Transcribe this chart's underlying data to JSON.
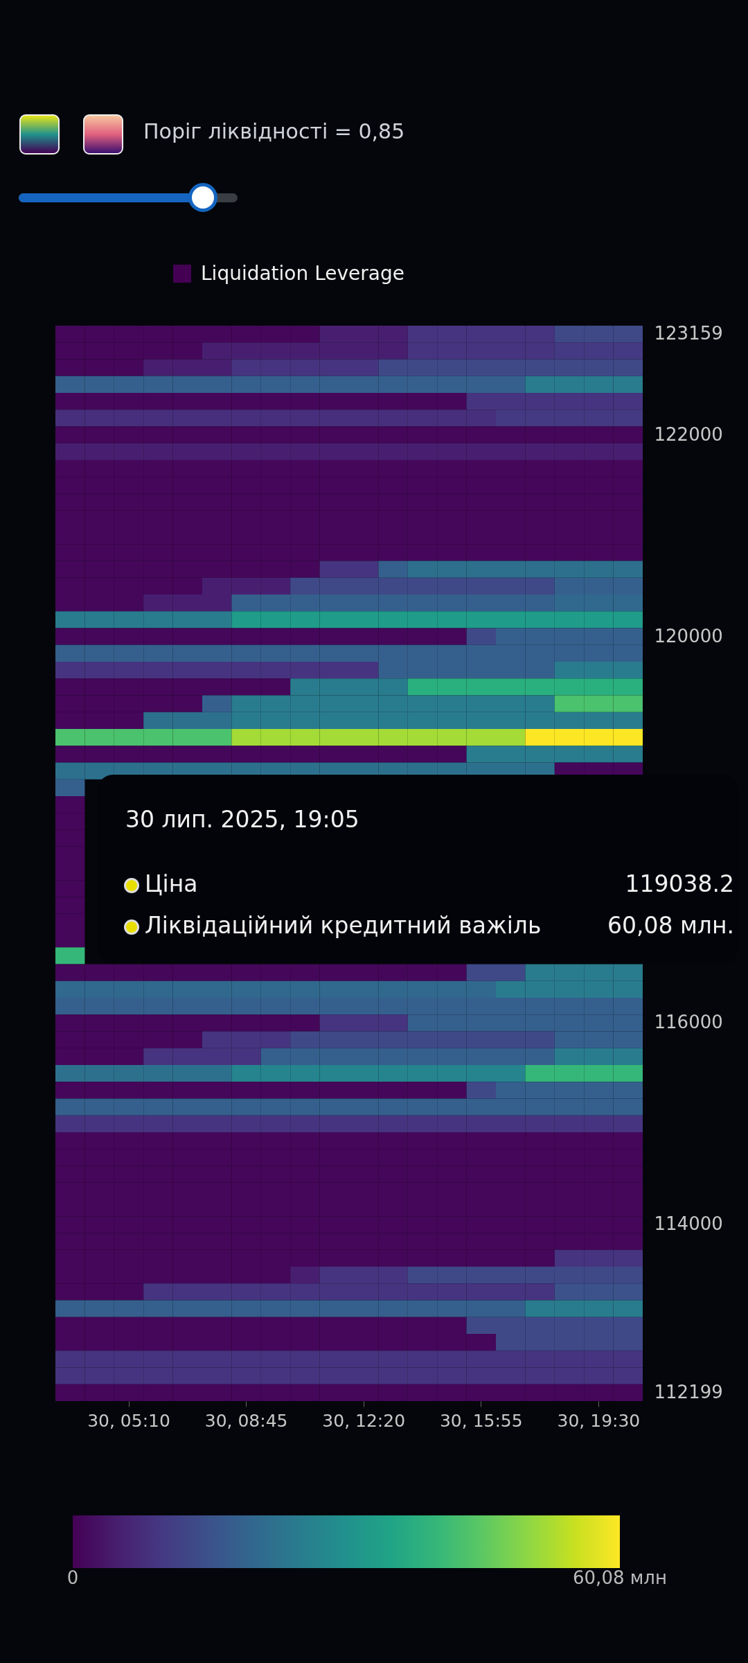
{
  "chart_data": {
    "type": "heatmap",
    "annotations": [
      "Поріг ліквідності = 0,85",
      "30 лип. 2025, 19:05",
      "Ціна",
      "119038.2",
      "Ліквідаційний кредитний важіль",
      "60,08 млн.",
      "Liquidation Leverage"
    ],
    "categories": [
      null,
      null,
      "30, 05:10",
      null,
      null,
      null,
      "30, 08:45",
      null,
      null,
      null,
      "30, 12:20",
      null,
      null,
      null,
      "30, 15:55",
      null,
      null,
      null,
      "30, 19:30",
      null
    ],
    "y_categories": [
      "123159",
      null,
      null,
      null,
      null,
      null,
      "122000",
      null,
      null,
      null,
      null,
      null,
      null,
      null,
      null,
      null,
      null,
      null,
      "120000",
      null,
      null,
      null,
      null,
      null,
      null,
      null,
      null,
      null,
      null,
      null,
      null,
      null,
      null,
      null,
      null,
      null,
      null,
      null,
      null,
      null,
      null,
      "116000",
      null,
      null,
      null,
      null,
      null,
      null,
      null,
      null,
      null,
      null,
      null,
      "114000",
      null,
      null,
      null,
      null,
      null,
      null,
      null,
      null,
      null,
      "112199"
    ],
    "clim": [
      0,
      60.08
    ],
    "cticks": [
      0,
      {
        "value": 60.08,
        "label": "60,08 млн"
      }
    ],
    "cells": [
      [
        1,
        1,
        1,
        1,
        1,
        1,
        1,
        1,
        1,
        5,
        5,
        5,
        9,
        9,
        9,
        9,
        9,
        13,
        13,
        13
      ],
      [
        1,
        1,
        1,
        1,
        1,
        5,
        5,
        5,
        5,
        5,
        5,
        5,
        9,
        9,
        9,
        9,
        9,
        10,
        10,
        10
      ],
      [
        1,
        1,
        1,
        5,
        5,
        5,
        9,
        9,
        9,
        9,
        9,
        13,
        13,
        13,
        13,
        13,
        13,
        13,
        13,
        13
      ],
      [
        18,
        18,
        18,
        18,
        18,
        18,
        18,
        18,
        18,
        18,
        18,
        18,
        18,
        18,
        18,
        18,
        25,
        25,
        25,
        25
      ],
      [
        1,
        1,
        1,
        1,
        1,
        1,
        1,
        1,
        1,
        1,
        1,
        1,
        1,
        1,
        9,
        9,
        9,
        9,
        9,
        9
      ],
      [
        8,
        8,
        8,
        8,
        8,
        8,
        8,
        8,
        8,
        8,
        8,
        8,
        8,
        8,
        8,
        10,
        10,
        10,
        10,
        10
      ],
      [
        1,
        1,
        1,
        1,
        1,
        1,
        1,
        1,
        1,
        1,
        1,
        1,
        1,
        1,
        1,
        1,
        1,
        1,
        1,
        1
      ],
      [
        5,
        5,
        5,
        5,
        5,
        5,
        5,
        5,
        5,
        5,
        5,
        5,
        5,
        5,
        5,
        5,
        5,
        5,
        5,
        5
      ],
      [
        1,
        1,
        1,
        1,
        1,
        1,
        1,
        1,
        1,
        1,
        1,
        1,
        1,
        1,
        1,
        1,
        1,
        1,
        1,
        1
      ],
      [
        1,
        1,
        1,
        1,
        1,
        1,
        1,
        1,
        1,
        1,
        1,
        1,
        1,
        1,
        1,
        1,
        1,
        1,
        1,
        1
      ],
      [
        1,
        1,
        1,
        1,
        1,
        1,
        1,
        1,
        1,
        1,
        1,
        1,
        1,
        1,
        1,
        1,
        1,
        1,
        1,
        1
      ],
      [
        1,
        1,
        1,
        1,
        1,
        1,
        1,
        1,
        1,
        1,
        1,
        1,
        1,
        1,
        1,
        1,
        1,
        1,
        1,
        1
      ],
      [
        1,
        1,
        1,
        1,
        1,
        1,
        1,
        1,
        1,
        1,
        1,
        1,
        1,
        1,
        1,
        1,
        1,
        1,
        1,
        1
      ],
      [
        1,
        1,
        1,
        1,
        1,
        1,
        1,
        1,
        1,
        1,
        1,
        1,
        1,
        1,
        1,
        1,
        1,
        1,
        1,
        1
      ],
      [
        1,
        1,
        1,
        1,
        1,
        1,
        1,
        1,
        1,
        9,
        9,
        18,
        22,
        22,
        22,
        22,
        22,
        22,
        22,
        22
      ],
      [
        1,
        1,
        1,
        1,
        1,
        5,
        5,
        5,
        13,
        13,
        13,
        13,
        13,
        13,
        13,
        13,
        13,
        18,
        18,
        18
      ],
      [
        1,
        1,
        1,
        5,
        5,
        5,
        18,
        18,
        18,
        18,
        18,
        18,
        18,
        18,
        18,
        18,
        18,
        20,
        20,
        20
      ],
      [
        25,
        25,
        25,
        25,
        25,
        25,
        33,
        33,
        33,
        33,
        33,
        33,
        33,
        33,
        33,
        33,
        33,
        33,
        33,
        33
      ],
      [
        1,
        1,
        1,
        1,
        1,
        1,
        1,
        1,
        1,
        1,
        1,
        1,
        1,
        1,
        13,
        18,
        18,
        18,
        18,
        18
      ],
      [
        18,
        18,
        18,
        18,
        18,
        18,
        18,
        18,
        18,
        18,
        18,
        18,
        18,
        18,
        18,
        18,
        18,
        18,
        18,
        18
      ],
      [
        9,
        9,
        9,
        9,
        9,
        9,
        9,
        9,
        9,
        9,
        9,
        18,
        18,
        18,
        18,
        18,
        18,
        25,
        25,
        25
      ],
      [
        1,
        1,
        1,
        1,
        1,
        1,
        1,
        1,
        25,
        25,
        25,
        25,
        38,
        38,
        38,
        38,
        38,
        38,
        38,
        38
      ],
      [
        1,
        1,
        1,
        1,
        1,
        18,
        25,
        25,
        25,
        25,
        25,
        25,
        25,
        25,
        25,
        25,
        25,
        43,
        43,
        43
      ],
      [
        1,
        1,
        1,
        22,
        22,
        22,
        25,
        25,
        25,
        25,
        25,
        25,
        25,
        25,
        25,
        25,
        25,
        25,
        25,
        25
      ],
      [
        43,
        43,
        43,
        43,
        43,
        43,
        52,
        52,
        52,
        52,
        52,
        52,
        52,
        52,
        52,
        52,
        60.08,
        60.08,
        60.08,
        60.08
      ],
      [
        1,
        1,
        1,
        1,
        1,
        1,
        1,
        1,
        1,
        1,
        1,
        1,
        1,
        1,
        25,
        25,
        25,
        25,
        25,
        25
      ],
      [
        22,
        22,
        22,
        22,
        22,
        22,
        22,
        22,
        22,
        22,
        22,
        22,
        22,
        22,
        22,
        22,
        22,
        1,
        1,
        1
      ],
      [
        18,
        null,
        null,
        null,
        null,
        null,
        null,
        null,
        null,
        null,
        null,
        null,
        null,
        null,
        null,
        null,
        null,
        null,
        null,
        null
      ],
      [
        1,
        null,
        null,
        null,
        null,
        null,
        null,
        null,
        null,
        null,
        null,
        null,
        null,
        null,
        null,
        null,
        null,
        null,
        null,
        null
      ],
      [
        1,
        null,
        null,
        null,
        null,
        null,
        null,
        null,
        null,
        null,
        null,
        null,
        null,
        null,
        null,
        null,
        null,
        null,
        null,
        null
      ],
      [
        1,
        null,
        null,
        null,
        null,
        null,
        null,
        null,
        null,
        null,
        null,
        null,
        null,
        null,
        null,
        null,
        null,
        null,
        null,
        null
      ],
      [
        1,
        null,
        null,
        null,
        null,
        null,
        null,
        null,
        null,
        null,
        null,
        null,
        null,
        null,
        null,
        null,
        null,
        null,
        null,
        null
      ],
      [
        1,
        null,
        null,
        null,
        null,
        null,
        null,
        null,
        null,
        null,
        null,
        null,
        null,
        null,
        null,
        null,
        null,
        null,
        null,
        null
      ],
      [
        1,
        null,
        null,
        null,
        null,
        null,
        null,
        null,
        null,
        null,
        null,
        null,
        null,
        null,
        null,
        null,
        null,
        null,
        null,
        null
      ],
      [
        1,
        null,
        null,
        null,
        null,
        null,
        null,
        null,
        null,
        null,
        null,
        null,
        null,
        null,
        null,
        null,
        null,
        null,
        null,
        null
      ],
      [
        1,
        null,
        null,
        null,
        null,
        null,
        null,
        null,
        null,
        null,
        null,
        null,
        null,
        null,
        null,
        null,
        null,
        null,
        null,
        null
      ],
      [
        1,
        null,
        null,
        null,
        null,
        null,
        null,
        null,
        null,
        null,
        null,
        null,
        null,
        null,
        null,
        null,
        null,
        null,
        null,
        null
      ],
      [
        40,
        null,
        null,
        null,
        null,
        null,
        null,
        null,
        null,
        null,
        null,
        null,
        null,
        null,
        null,
        null,
        null,
        null,
        null,
        null
      ],
      [
        1,
        1,
        1,
        1,
        1,
        1,
        1,
        1,
        1,
        1,
        1,
        1,
        1,
        1,
        13,
        13,
        25,
        25,
        25,
        25
      ],
      [
        20,
        20,
        20,
        20,
        20,
        20,
        20,
        20,
        20,
        20,
        20,
        20,
        20,
        20,
        20,
        25,
        25,
        25,
        25,
        25
      ],
      [
        18,
        18,
        18,
        18,
        18,
        18,
        18,
        18,
        18,
        18,
        18,
        18,
        18,
        18,
        18,
        18,
        18,
        18,
        18,
        18
      ],
      [
        1,
        1,
        1,
        1,
        1,
        1,
        1,
        1,
        1,
        9,
        9,
        9,
        18,
        18,
        18,
        18,
        18,
        18,
        18,
        18
      ],
      [
        1,
        1,
        1,
        1,
        1,
        9,
        9,
        9,
        13,
        13,
        13,
        13,
        13,
        13,
        13,
        13,
        13,
        18,
        18,
        18
      ],
      [
        1,
        1,
        1,
        9,
        9,
        9,
        9,
        18,
        18,
        18,
        18,
        18,
        18,
        18,
        18,
        18,
        18,
        25,
        25,
        25
      ],
      [
        22,
        22,
        22,
        22,
        22,
        22,
        27,
        27,
        27,
        27,
        27,
        27,
        27,
        27,
        27,
        27,
        40,
        40,
        40,
        40
      ],
      [
        1,
        1,
        1,
        1,
        1,
        1,
        1,
        1,
        1,
        1,
        1,
        1,
        1,
        1,
        13,
        18,
        18,
        18,
        18,
        18
      ],
      [
        18,
        18,
        18,
        18,
        18,
        18,
        18,
        18,
        18,
        18,
        18,
        18,
        18,
        18,
        18,
        18,
        18,
        18,
        18,
        18
      ],
      [
        9,
        9,
        9,
        9,
        9,
        9,
        9,
        9,
        9,
        9,
        9,
        9,
        9,
        9,
        9,
        9,
        9,
        9,
        9,
        9
      ],
      [
        1,
        1,
        1,
        1,
        1,
        1,
        1,
        1,
        1,
        1,
        1,
        1,
        1,
        1,
        1,
        1,
        1,
        1,
        1,
        1
      ],
      [
        1,
        1,
        1,
        1,
        1,
        1,
        1,
        1,
        1,
        1,
        1,
        1,
        1,
        1,
        1,
        1,
        1,
        1,
        1,
        1
      ],
      [
        1,
        1,
        1,
        1,
        1,
        1,
        1,
        1,
        1,
        1,
        1,
        1,
        1,
        1,
        1,
        1,
        1,
        1,
        1,
        1
      ],
      [
        1,
        1,
        1,
        1,
        1,
        1,
        1,
        1,
        1,
        1,
        1,
        1,
        1,
        1,
        1,
        1,
        1,
        1,
        1,
        1
      ],
      [
        1,
        1,
        1,
        1,
        1,
        1,
        1,
        1,
        1,
        1,
        1,
        1,
        1,
        1,
        1,
        1,
        1,
        1,
        1,
        1
      ],
      [
        1,
        1,
        1,
        1,
        1,
        1,
        1,
        1,
        1,
        1,
        1,
        1,
        1,
        1,
        1,
        1,
        1,
        1,
        1,
        1
      ],
      [
        1,
        1,
        1,
        1,
        1,
        1,
        1,
        1,
        1,
        1,
        1,
        1,
        1,
        1,
        1,
        1,
        1,
        1,
        1,
        1
      ],
      [
        1,
        1,
        1,
        1,
        1,
        1,
        1,
        1,
        1,
        1,
        1,
        1,
        1,
        1,
        1,
        1,
        1,
        9,
        9,
        9
      ],
      [
        1,
        1,
        1,
        1,
        1,
        1,
        1,
        1,
        5,
        9,
        9,
        9,
        13,
        13,
        13,
        13,
        13,
        13,
        13,
        13
      ],
      [
        1,
        1,
        1,
        9,
        9,
        9,
        9,
        9,
        9,
        9,
        9,
        9,
        9,
        9,
        9,
        9,
        9,
        15,
        15,
        15
      ],
      [
        18,
        18,
        18,
        18,
        18,
        18,
        18,
        18,
        18,
        18,
        18,
        18,
        18,
        18,
        18,
        18,
        25,
        25,
        25,
        25
      ],
      [
        1,
        1,
        1,
        1,
        1,
        1,
        1,
        1,
        1,
        1,
        1,
        1,
        1,
        1,
        13,
        13,
        13,
        13,
        13,
        13
      ],
      [
        1,
        1,
        1,
        1,
        1,
        1,
        1,
        1,
        1,
        1,
        1,
        1,
        1,
        1,
        1,
        13,
        13,
        13,
        13,
        13
      ],
      [
        9,
        9,
        9,
        9,
        9,
        9,
        9,
        9,
        9,
        9,
        9,
        9,
        9,
        9,
        9,
        9,
        9,
        9,
        9,
        9
      ],
      [
        9,
        9,
        9,
        9,
        9,
        9,
        9,
        9,
        9,
        9,
        9,
        9,
        9,
        9,
        9,
        9,
        9,
        9,
        9,
        9
      ],
      [
        1,
        1,
        1,
        1,
        1,
        1,
        1,
        1,
        1,
        1,
        1,
        1,
        1,
        1,
        1,
        1,
        1,
        1,
        1,
        1
      ]
    ]
  }
}
